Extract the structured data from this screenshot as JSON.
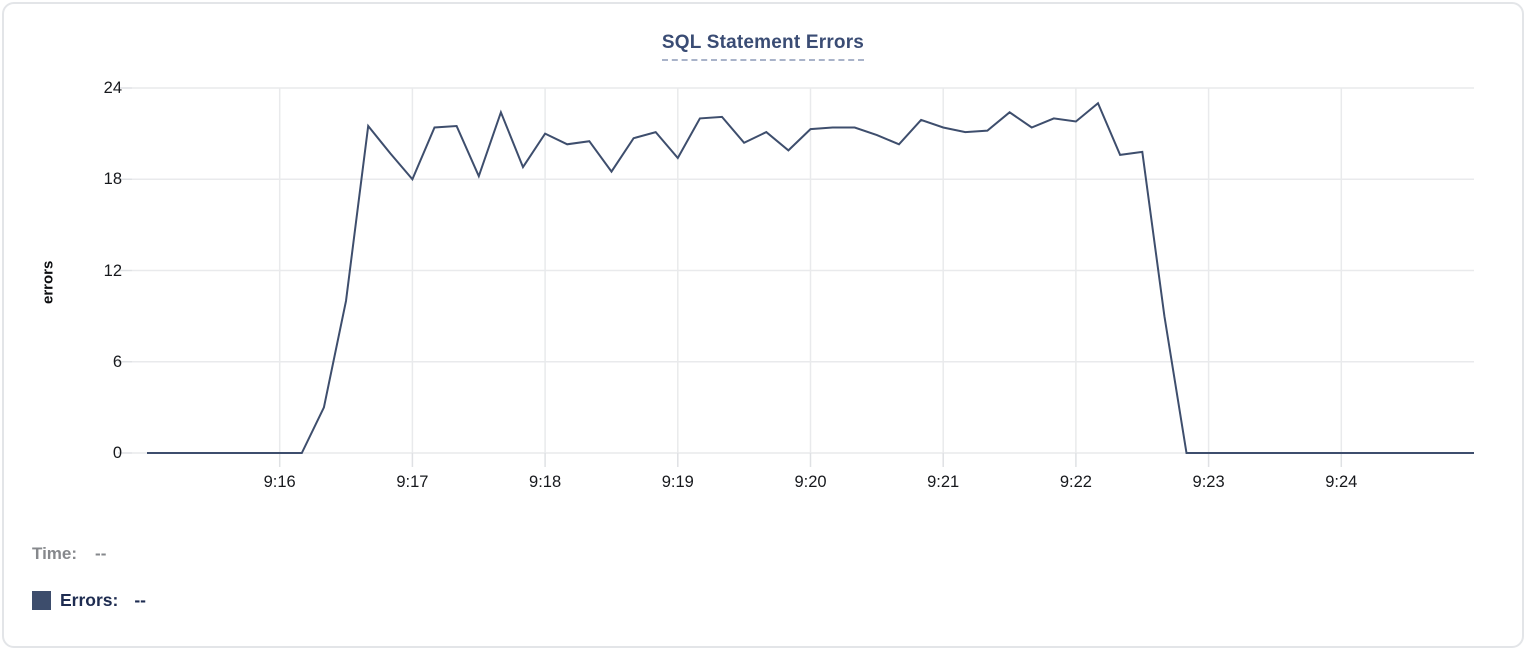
{
  "card": {
    "background": "#ffffff",
    "border_color": "#e3e5e8"
  },
  "chart_data": {
    "type": "line",
    "title": "SQL Statement Errors",
    "xlabel": "",
    "ylabel": "errors",
    "ylim": [
      0,
      24
    ],
    "y_ticks": [
      0,
      6,
      12,
      18,
      24
    ],
    "x_tick_labels": [
      "9:16",
      "9:17",
      "9:18",
      "9:19",
      "9:20",
      "9:21",
      "9:22",
      "9:23",
      "9:24"
    ],
    "x_axis": {
      "start_time": "9:15:00",
      "end_time": "9:25:00",
      "total_seconds": 600,
      "first_tick_offset_seconds": 60,
      "tick_interval_seconds": 60
    },
    "grid": true,
    "legend_position": "bottom-left",
    "series": [
      {
        "name": "Errors",
        "color": "#3e4e6d",
        "start_time": "9:15:00",
        "sample_interval_seconds": 10,
        "values": [
          0,
          0,
          0,
          0,
          0,
          0,
          0,
          0,
          3,
          10,
          21.5,
          19.7,
          18,
          21.4,
          21.5,
          18.2,
          22.4,
          18.8,
          21,
          20.3,
          20.5,
          18.5,
          20.7,
          21.1,
          19.4,
          22,
          22.1,
          20.4,
          21.1,
          19.9,
          21.3,
          21.4,
          21.4,
          20.9,
          20.3,
          21.9,
          21.4,
          21.1,
          21.2,
          22.4,
          21.4,
          22,
          21.8,
          23,
          19.6,
          19.8,
          9,
          0,
          0,
          0,
          0,
          0,
          0,
          0,
          0,
          0,
          0,
          0,
          0,
          0,
          0
        ]
      }
    ]
  },
  "tooltip_footer": {
    "time_label": "Time:",
    "time_value": "--",
    "errors_label": "Errors:",
    "errors_value": "--",
    "swatch_color": "#3d4d6c"
  },
  "colors": {
    "title_text": "#3a4c74",
    "title_underline": "#a9b3c9",
    "series_line": "#3e4e6d",
    "gridline": "#e9eaec",
    "tick_stub": "#dfe1e4",
    "axis_text": "#17191d",
    "time_text": "#86888c",
    "errors_text": "#1e2c51"
  }
}
